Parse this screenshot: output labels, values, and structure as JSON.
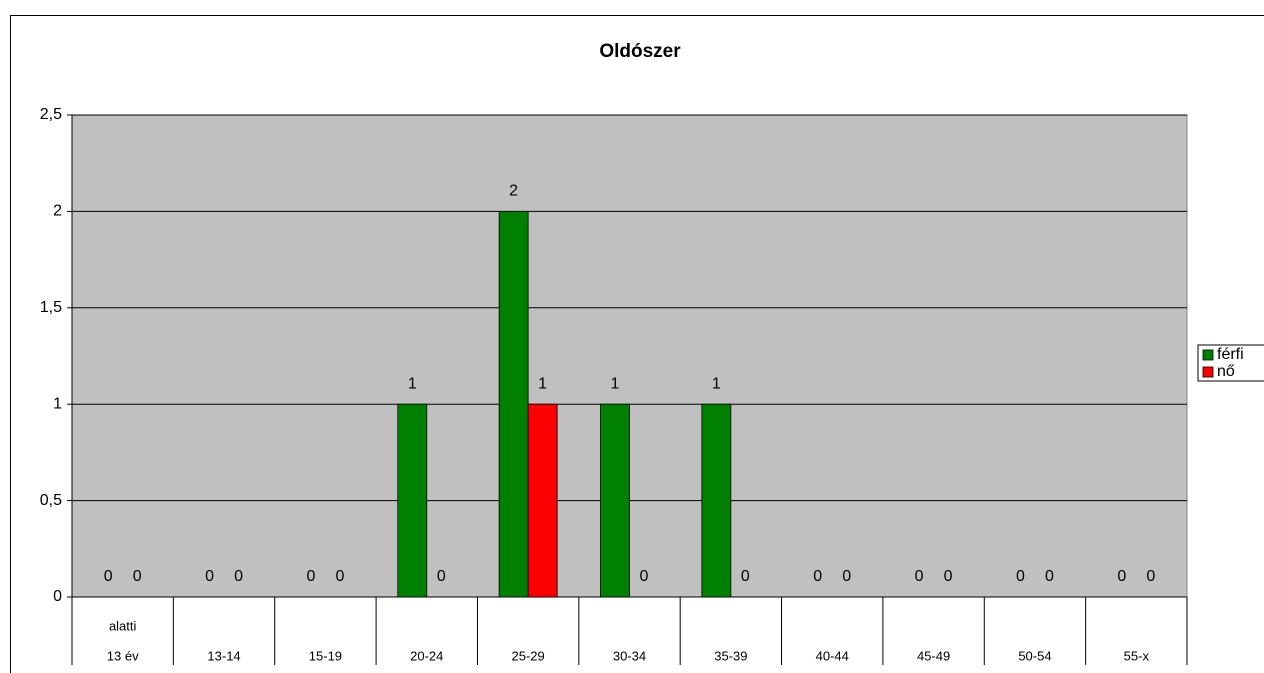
{
  "chart_data": {
    "type": "bar",
    "title": "Oldószer",
    "categories": [
      [
        "alatti",
        "13 év"
      ],
      "13-14",
      "15-19",
      "20-24",
      "25-29",
      "30-34",
      "35-39",
      "40-44",
      "45-49",
      "50-54",
      "55-x"
    ],
    "series": [
      {
        "name": "férfi",
        "color": "#008000",
        "values": [
          0,
          0,
          0,
          1,
          2,
          1,
          1,
          0,
          0,
          0,
          0
        ]
      },
      {
        "name": "nő",
        "color": "#ff0000",
        "values": [
          0,
          0,
          0,
          0,
          1,
          0,
          0,
          0,
          0,
          0,
          0
        ]
      }
    ],
    "ylim": [
      0,
      2.5
    ],
    "yticks": [
      0,
      {
        "value": 0.5,
        "label": "0,5"
      },
      1,
      {
        "value": 1.5,
        "label": "1,5"
      },
      2,
      {
        "value": 2.5,
        "label": "2,5"
      }
    ],
    "grid": true,
    "legend": "right",
    "plot_background": "#c0c0c0"
  }
}
